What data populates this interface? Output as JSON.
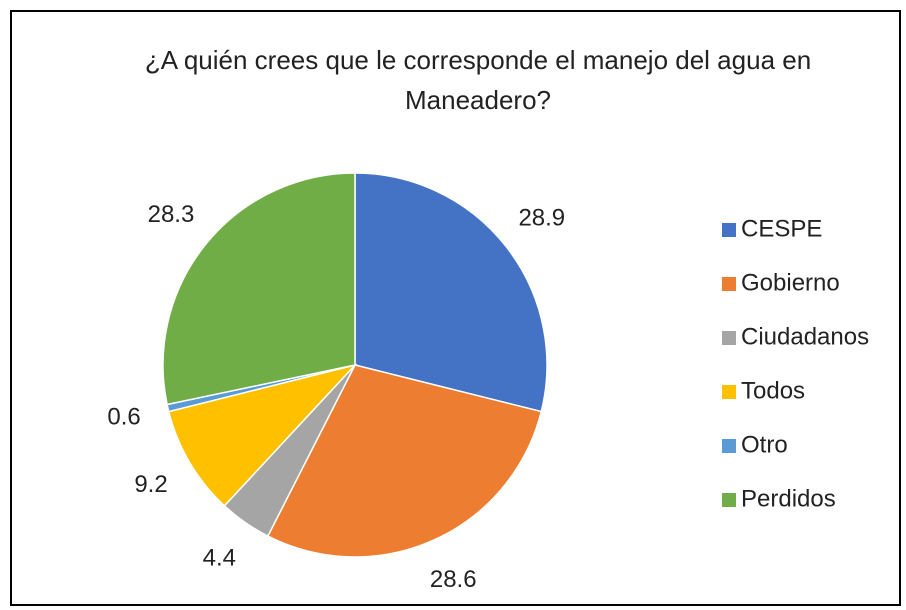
{
  "chart_data": {
    "type": "pie",
    "title": "¿A quién crees que le corresponde el manejo del agua en Maneadero?",
    "categories": [
      "CESPE",
      "Gobierno",
      "Ciudadanos",
      "Todos",
      "Otro",
      "Perdidos"
    ],
    "values": [
      28.9,
      28.6,
      4.4,
      9.2,
      0.6,
      28.3
    ],
    "colors": [
      "#4472c4",
      "#ed7d31",
      "#a5a5a5",
      "#ffc000",
      "#5b9bd5",
      "#70ad47"
    ],
    "legend": "right"
  }
}
